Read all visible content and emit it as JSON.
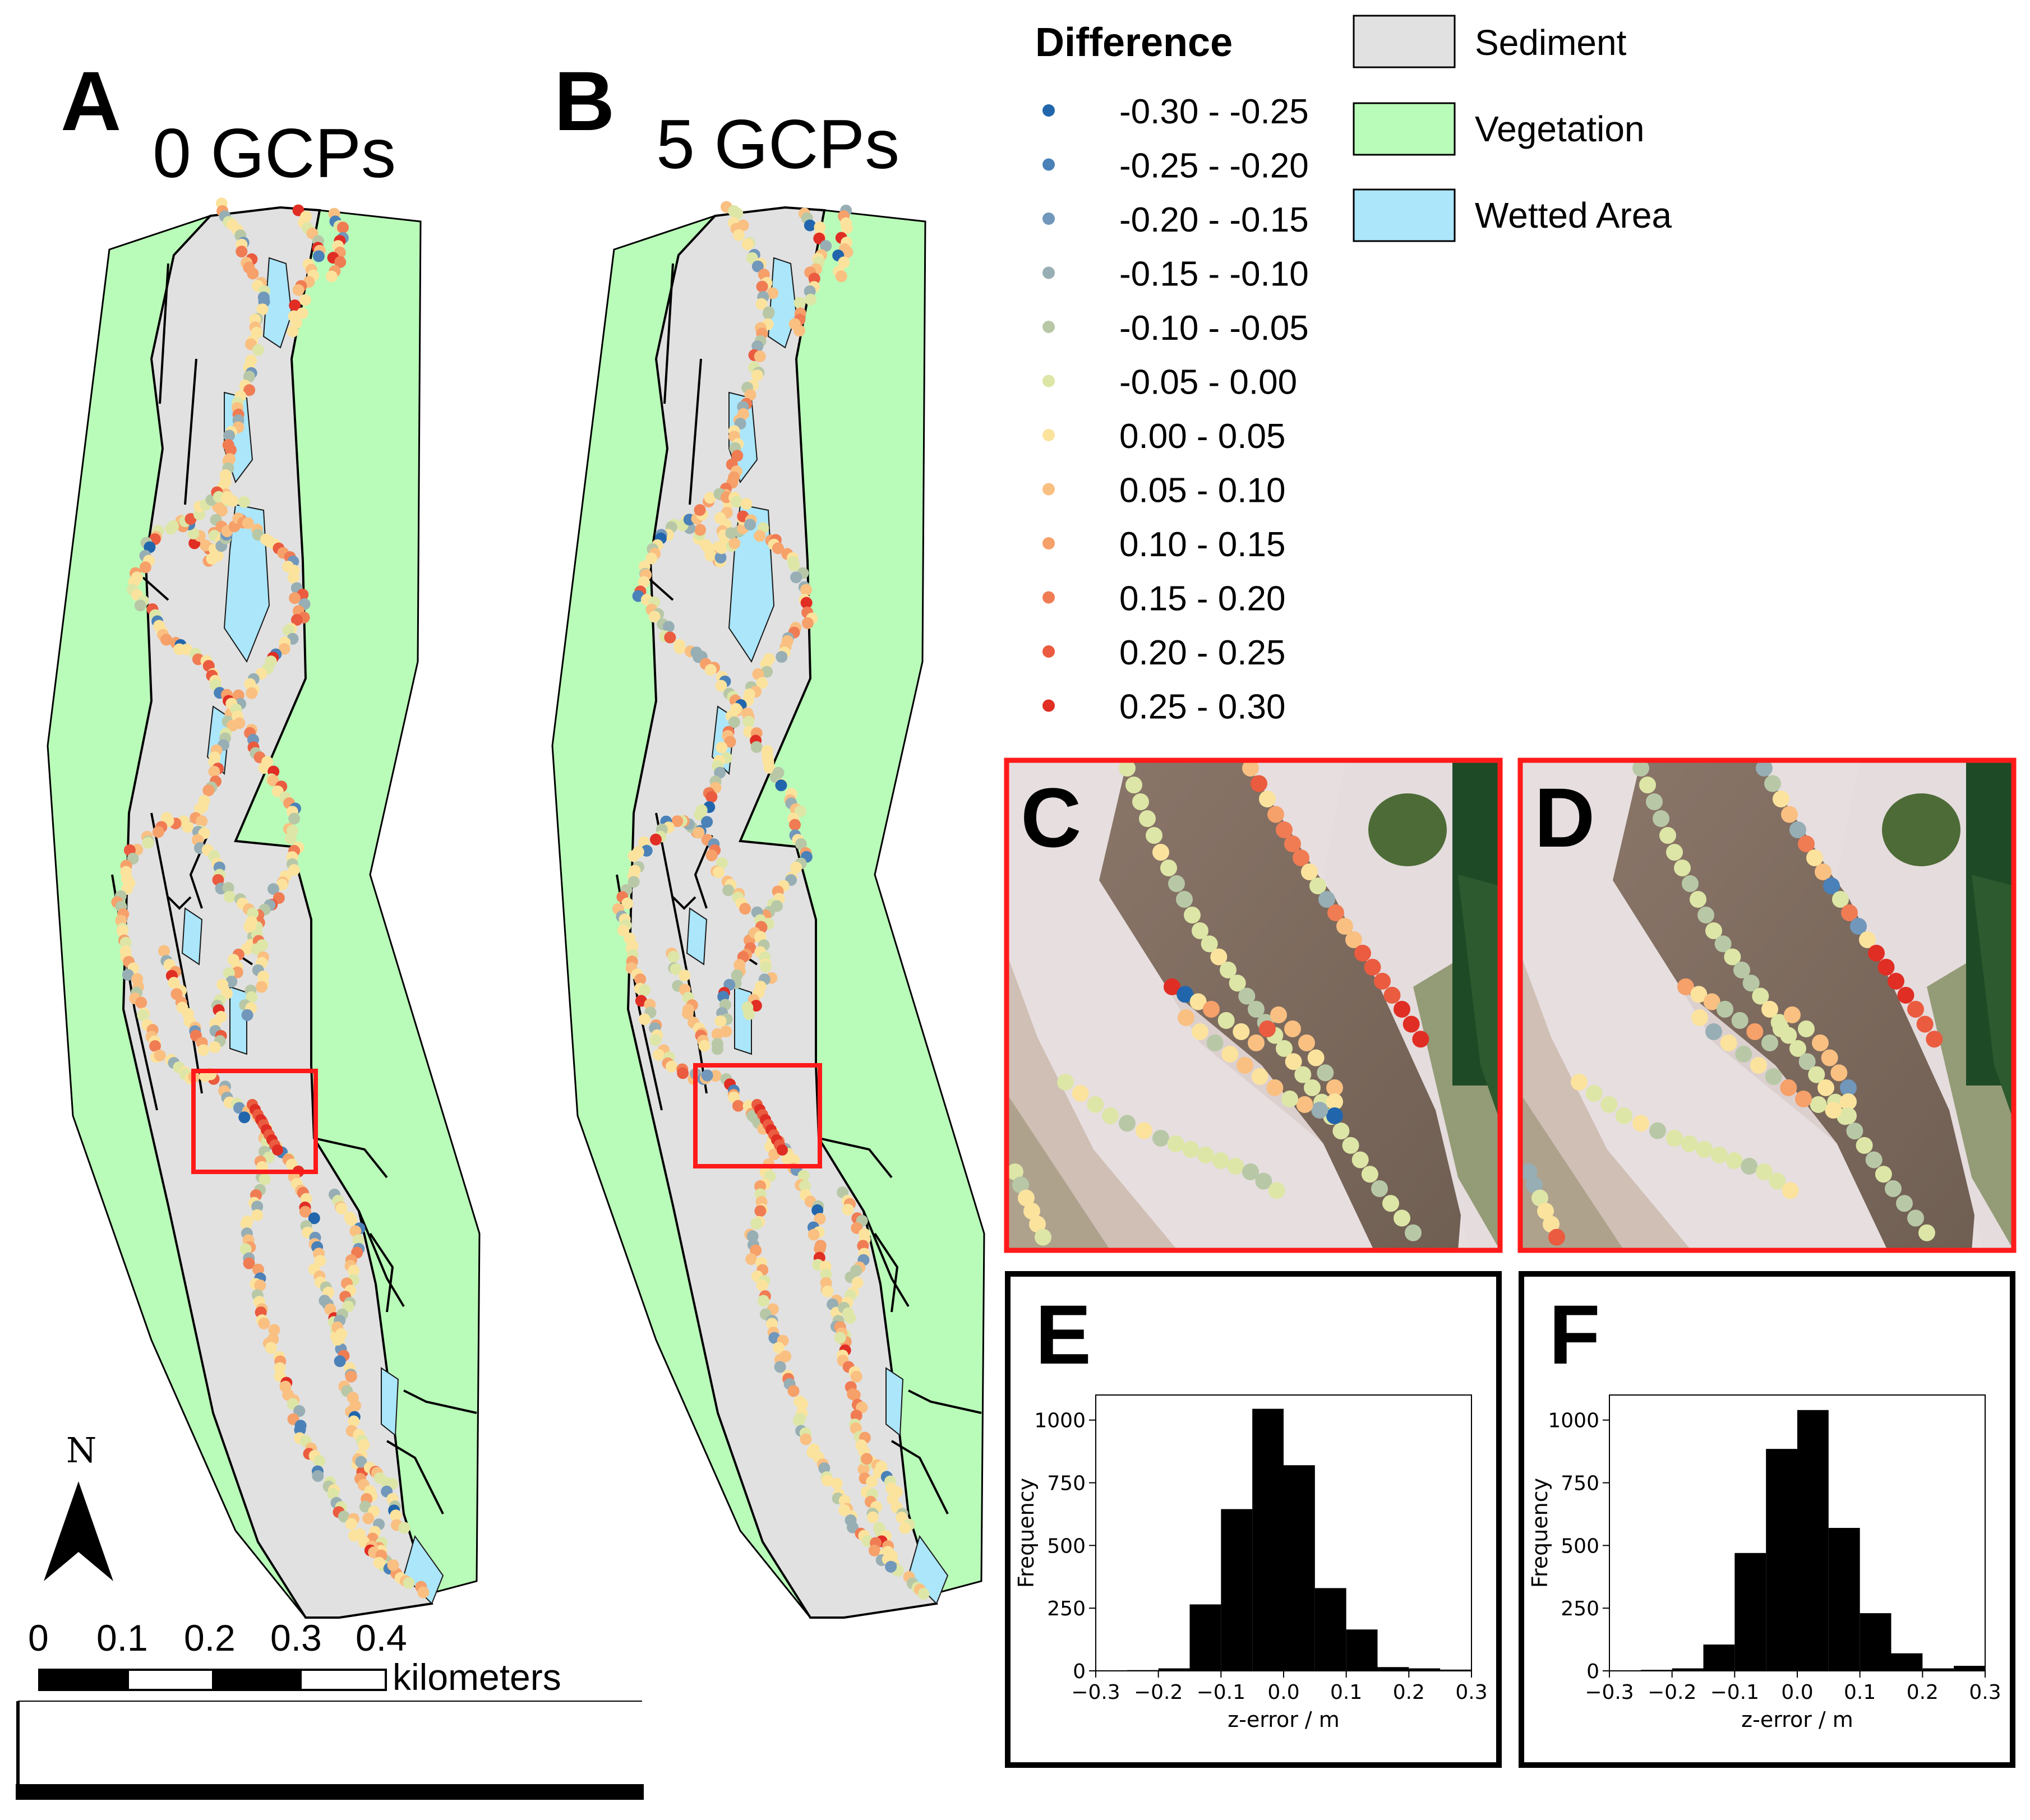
{
  "panels": {
    "A": {
      "letter": "A",
      "title": "0 GCPs"
    },
    "B": {
      "letter": "B",
      "title": "5 GCPs"
    },
    "C": {
      "letter": "C"
    },
    "D": {
      "letter": "D"
    },
    "E": {
      "letter": "E"
    },
    "F": {
      "letter": "F"
    }
  },
  "legend": {
    "difference_title": "Difference",
    "classes": [
      {
        "label": "-0.30 - -0.25",
        "color": "#2166ac"
      },
      {
        "label": "-0.25 - -0.20",
        "color": "#4a81b8"
      },
      {
        "label": "-0.20 - -0.15",
        "color": "#7197bb"
      },
      {
        "label": "-0.15 - -0.10",
        "color": "#97aeb4"
      },
      {
        "label": "-0.10 - -0.05",
        "color": "#b8c8a7"
      },
      {
        "label": "-0.05 - 0.00",
        "color": "#dde6a6"
      },
      {
        "label": "0.00 - 0.05",
        "color": "#fbe39e"
      },
      {
        "label": "0.05 - 0.10",
        "color": "#f9c082"
      },
      {
        "label": "0.10 - 0.15",
        "color": "#f6a06a"
      },
      {
        "label": "0.15 - 0.20",
        "color": "#f07c54"
      },
      {
        "label": "0.20 - 0.25",
        "color": "#ea5b3f"
      },
      {
        "label": "0.25 - 0.30",
        "color": "#e02e24"
      }
    ],
    "landcover": [
      {
        "label": "Sediment",
        "color": "#e1e1e1"
      },
      {
        "label": "Vegetation",
        "color": "#b9fcb9"
      },
      {
        "label": "Wetted Area",
        "color": "#abe6fb"
      }
    ]
  },
  "north_arrow": {
    "label": "N"
  },
  "scale_bar": {
    "ticks": [
      "0",
      "0.1",
      "0.2",
      "0.3",
      "0.4"
    ],
    "unit": "kilometers"
  },
  "chart_data": [
    {
      "panel": "E",
      "type": "bar",
      "title": "",
      "xlabel": "z-error / m",
      "ylabel": "Frequency",
      "bin_edges": [
        -0.3,
        -0.25,
        -0.2,
        -0.15,
        -0.1,
        -0.05,
        0.0,
        0.05,
        0.1,
        0.15,
        0.2,
        0.25,
        0.3
      ],
      "values": [
        2,
        3,
        10,
        265,
        645,
        1045,
        820,
        330,
        165,
        15,
        10,
        5
      ],
      "xlim": [
        -0.3,
        0.3
      ],
      "ylim": [
        0,
        1100
      ],
      "xticks": [
        "−0.3",
        "−0.2",
        "−0.1",
        "0.0",
        "0.1",
        "0.2",
        "0.3"
      ],
      "yticks": [
        "0",
        "250",
        "500",
        "750",
        "1000"
      ]
    },
    {
      "panel": "F",
      "type": "bar",
      "title": "",
      "xlabel": "z-error / m",
      "ylabel": "Frequency",
      "bin_edges": [
        -0.3,
        -0.25,
        -0.2,
        -0.15,
        -0.1,
        -0.05,
        0.0,
        0.05,
        0.1,
        0.15,
        0.2,
        0.25,
        0.3
      ],
      "values": [
        2,
        4,
        10,
        105,
        470,
        885,
        1040,
        570,
        230,
        70,
        10,
        20
      ],
      "xlim": [
        -0.3,
        0.3
      ],
      "ylim": [
        0,
        1100
      ],
      "xticks": [
        "−0.3",
        "−0.2",
        "−0.1",
        "0.0",
        "0.1",
        "0.2",
        "0.3"
      ],
      "yticks": [
        "0",
        "250",
        "500",
        "750",
        "1000"
      ]
    }
  ]
}
